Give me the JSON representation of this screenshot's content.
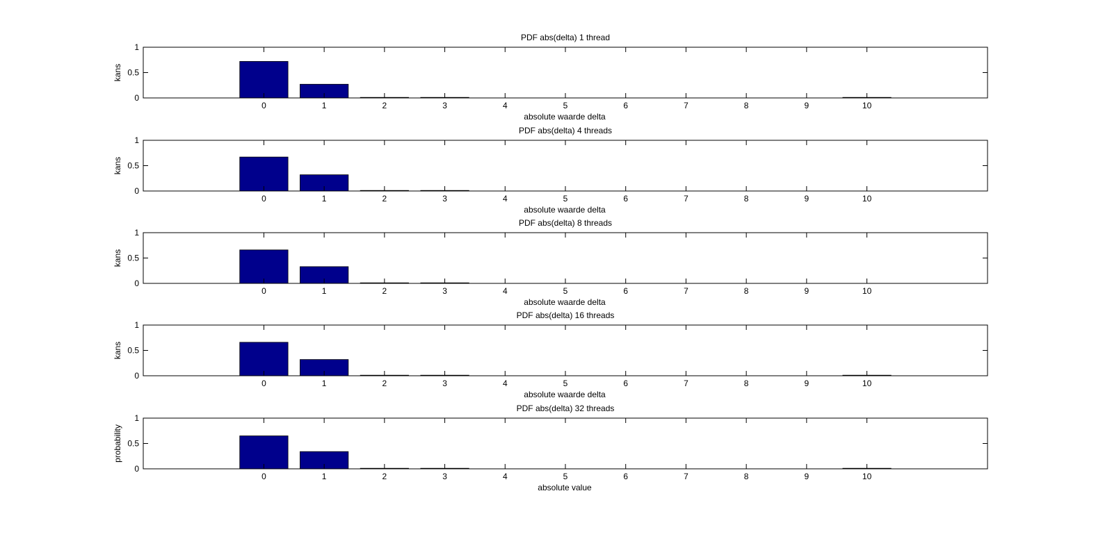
{
  "figure": {
    "background": "#ffffff",
    "bar_color": "#00008c",
    "axis_color": "#000000"
  },
  "chart_data": [
    {
      "type": "bar",
      "title": "PDF abs(delta) 1 thread",
      "xlabel": "absolute waarde delta",
      "ylabel": "kans",
      "x": [
        0,
        1,
        2,
        3,
        4,
        5,
        6,
        7,
        8,
        9,
        10
      ],
      "values": [
        0.72,
        0.27,
        0.004,
        0.003,
        0,
        0,
        0,
        0,
        0,
        0,
        0.003
      ],
      "xlim": [
        -2,
        12
      ],
      "ylim": [
        0,
        1
      ],
      "xticks": [
        "0",
        "1",
        "2",
        "3",
        "4",
        "5",
        "6",
        "7",
        "8",
        "9",
        "10"
      ],
      "yticks": [
        "0",
        "0.5",
        "1"
      ],
      "grid": false
    },
    {
      "type": "bar",
      "title": "PDF abs(delta) 4 threads",
      "xlabel": "absolute waarde delta",
      "ylabel": "kans",
      "x": [
        0,
        1,
        2,
        3,
        4,
        5,
        6,
        7,
        8,
        9,
        10
      ],
      "values": [
        0.67,
        0.32,
        0.006,
        0.001,
        0,
        0,
        0,
        0,
        0,
        0,
        0
      ],
      "xlim": [
        -2,
        12
      ],
      "ylim": [
        0,
        1
      ],
      "xticks": [
        "0",
        "1",
        "2",
        "3",
        "4",
        "5",
        "6",
        "7",
        "8",
        "9",
        "10"
      ],
      "yticks": [
        "0",
        "0.5",
        "1"
      ],
      "grid": false
    },
    {
      "type": "bar",
      "title": "PDF abs(delta) 8 threads",
      "xlabel": "absolute waarde delta",
      "ylabel": "kans",
      "x": [
        0,
        1,
        2,
        3,
        4,
        5,
        6,
        7,
        8,
        9,
        10
      ],
      "values": [
        0.66,
        0.33,
        0.006,
        0.003,
        0,
        0,
        0,
        0,
        0,
        0,
        0
      ],
      "xlim": [
        -2,
        12
      ],
      "ylim": [
        0,
        1
      ],
      "xticks": [
        "0",
        "1",
        "2",
        "3",
        "4",
        "5",
        "6",
        "7",
        "8",
        "9",
        "10"
      ],
      "yticks": [
        "0",
        "0.5",
        "1"
      ],
      "grid": false
    },
    {
      "type": "bar",
      "title": "PDF abs(delta) 16 threads",
      "xlabel": "absolute waarde delta",
      "ylabel": "kans",
      "x": [
        0,
        1,
        2,
        3,
        4,
        5,
        6,
        7,
        8,
        9,
        10
      ],
      "values": [
        0.66,
        0.32,
        0.006,
        0.003,
        0,
        0,
        0,
        0,
        0,
        0,
        0.003
      ],
      "xlim": [
        -2,
        12
      ],
      "ylim": [
        0,
        1
      ],
      "xticks": [
        "0",
        "1",
        "2",
        "3",
        "4",
        "5",
        "6",
        "7",
        "8",
        "9",
        "10"
      ],
      "yticks": [
        "0",
        "0.5",
        "1"
      ],
      "grid": false
    },
    {
      "type": "bar",
      "title": "PDF abs(delta) 32 threads",
      "xlabel": "absolute value",
      "ylabel": "probability",
      "x": [
        0,
        1,
        2,
        3,
        4,
        5,
        6,
        7,
        8,
        9,
        10
      ],
      "values": [
        0.65,
        0.34,
        0.006,
        0.003,
        0,
        0,
        0,
        0,
        0,
        0,
        0.003
      ],
      "xlim": [
        -2,
        12
      ],
      "ylim": [
        0,
        1
      ],
      "xticks": [
        "0",
        "1",
        "2",
        "3",
        "4",
        "5",
        "6",
        "7",
        "8",
        "9",
        "10"
      ],
      "yticks": [
        "0",
        "0.5",
        "1"
      ],
      "grid": false
    }
  ]
}
